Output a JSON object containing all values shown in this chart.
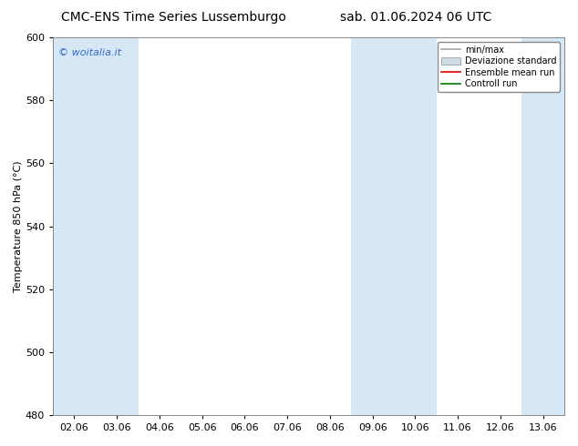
{
  "title_left": "CMC-ENS Time Series Lussemburgo",
  "title_right": "sab. 01.06.2024 06 UTC",
  "ylabel": "Temperature 850 hPa (°C)",
  "ylim": [
    480,
    600
  ],
  "yticks": [
    480,
    500,
    520,
    540,
    560,
    580,
    600
  ],
  "x_labels": [
    "02.06",
    "03.06",
    "04.06",
    "05.06",
    "06.06",
    "07.06",
    "08.06",
    "09.06",
    "10.06",
    "11.06",
    "12.06",
    "13.06"
  ],
  "watermark": "© woitalia.it",
  "shaded_cols": [
    0,
    1,
    7,
    8,
    11,
    12
  ],
  "shaded_color": "#d6e8f5",
  "legend_entries": [
    "min/max",
    "Deviazione standard",
    "Ensemble mean run",
    "Controll run"
  ],
  "legend_line_color": "#a8a8a8",
  "legend_patch_color": "#ccdde8",
  "legend_red": "#dd0000",
  "legend_green": "#007700",
  "background_color": "#ffffff",
  "plot_bg_color": "#ffffff",
  "title_fontsize": 10,
  "axis_fontsize": 8,
  "tick_fontsize": 8,
  "watermark_color": "#3366cc"
}
